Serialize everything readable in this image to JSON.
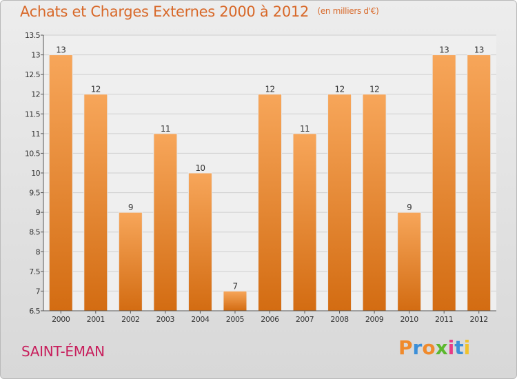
{
  "header": {
    "title": "Achats et Charges Externes 2000 à 2012",
    "subtitle": "(en milliers d'€)"
  },
  "footer": {
    "city": "SAINT-ÉMAN",
    "logo": "Proxiti"
  },
  "colors": {
    "bar_light": "#f7a65a",
    "bar_dark": "#d36c12",
    "grid": "#cfcfcf",
    "title": "#d8692a",
    "city": "#c81e5c",
    "logo": [
      "#f08a2c",
      "#3c8fd8",
      "#f08a2c",
      "#5cb82e",
      "#e83b86",
      "#3c8fd8",
      "#f0c22c"
    ]
  },
  "chart_data": {
    "type": "bar",
    "title": "Achats et Charges Externes 2000 à 2012",
    "subtitle": "(en milliers d'€)",
    "categories": [
      "2000",
      "2001",
      "2002",
      "2003",
      "2004",
      "2005",
      "2006",
      "2007",
      "2008",
      "2009",
      "2010",
      "2011",
      "2012"
    ],
    "values": [
      13,
      12,
      9,
      11,
      10,
      7,
      12,
      11,
      12,
      12,
      9,
      13,
      13
    ],
    "data_labels": [
      "13",
      "12",
      "9",
      "11",
      "10",
      "7",
      "12",
      "11",
      "12",
      "12",
      "9",
      "13",
      "13"
    ],
    "ylim": [
      6.5,
      13.5
    ],
    "yticks": [
      6.5,
      7,
      7.5,
      8,
      8.5,
      9,
      9.5,
      10,
      10.5,
      11,
      11.5,
      12,
      12.5,
      13,
      13.5
    ],
    "ytick_labels": [
      "6.5",
      "7",
      "7.5",
      "8",
      "8.5",
      "9",
      "9.5",
      "10",
      "10.5",
      "11",
      "11.5",
      "12",
      "12.5",
      "13",
      "13.5"
    ],
    "grid": true,
    "legend": "none"
  }
}
